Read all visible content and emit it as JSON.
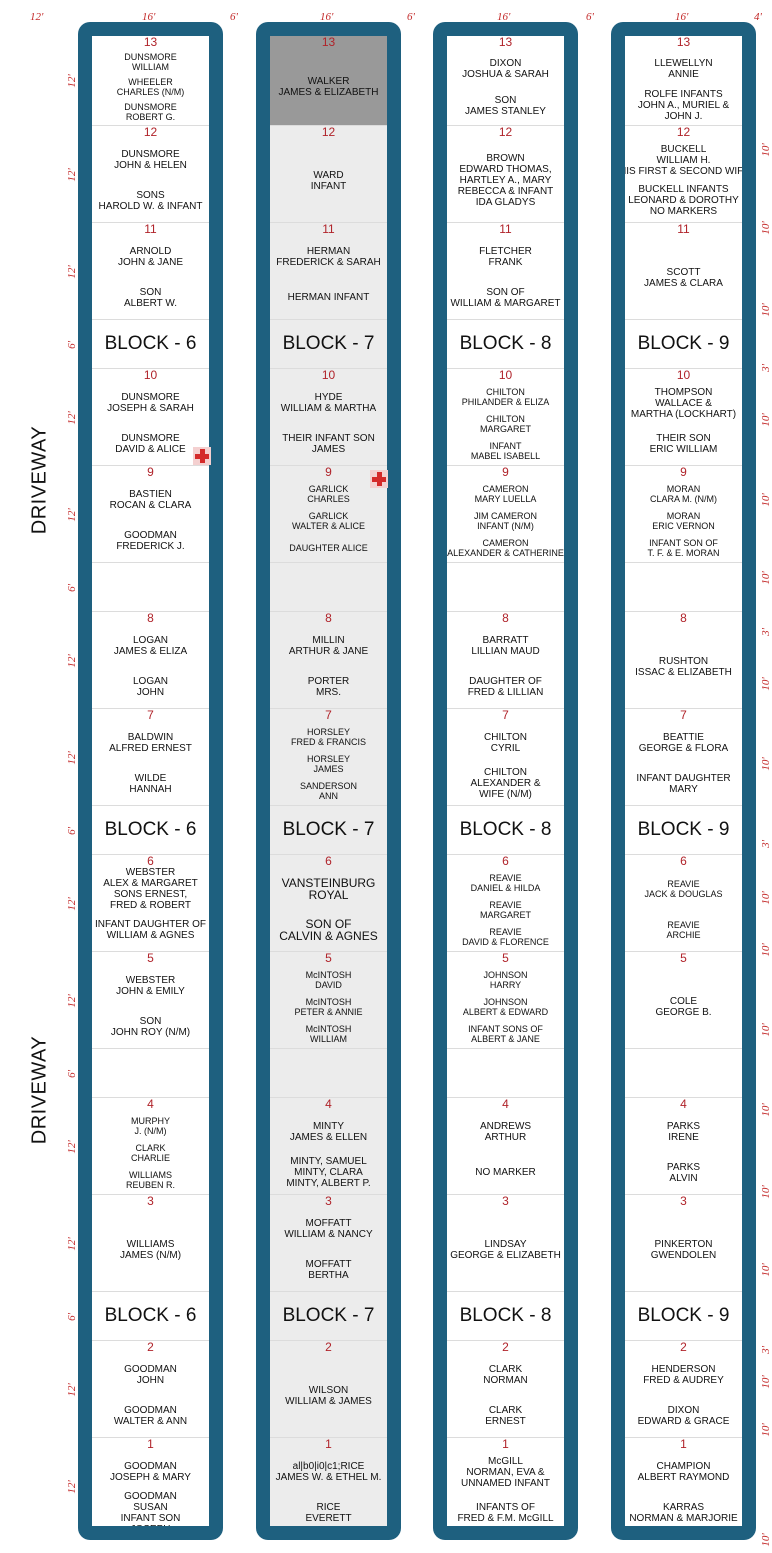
{
  "top_dims": [
    "12'",
    "16'",
    "6'",
    "16'",
    "6'",
    "16'",
    "6'",
    "16'",
    "4'"
  ],
  "driveway_label": "DRIVEWAY",
  "left_dims": [
    "12'",
    "12'",
    "12'",
    "6'",
    "12'",
    "12'",
    "6'",
    "12'",
    "12'",
    "6'",
    "12'",
    "12'",
    "6'",
    "12'",
    "12'",
    "6'",
    "12'",
    "12'"
  ],
  "right_dims": [
    "10'",
    "10'",
    "10'",
    "3'",
    "10'",
    "10'",
    "10'",
    "3'",
    "10'",
    "10'",
    "3'",
    "10'",
    "10'",
    "10'",
    "10'",
    "10'",
    "10'",
    "3'",
    "10'",
    "10'",
    "10'"
  ],
  "blocks": [
    {
      "name": "Block 6",
      "rows": [
        {
          "num": "13",
          "names": [
            "DUNSMORE\nWILLIAM",
            "WHEELER\nCHARLES (N/M)",
            "DUNSMORE\nROBERT G."
          ]
        },
        {
          "num": "12",
          "names": [
            "DUNSMORE\nJOHN & HELEN",
            "SONS\nHAROLD W. & INFANT"
          ]
        },
        {
          "num": "11",
          "names": [
            "ARNOLD\nJOHN & JANE",
            "SON\nALBERT W."
          ]
        },
        {
          "label": "BLOCK - 6"
        },
        {
          "num": "10",
          "names": [
            "DUNSMORE\nJOSEPH & SARAH",
            "DUNSMORE\nDAVID & ALICE"
          ]
        },
        {
          "num": "9",
          "names": [
            "BASTIEN\nROCAN & CLARA",
            "GOODMAN\nFREDERICK J."
          ]
        },
        {
          "empty": true
        },
        {
          "num": "8",
          "names": [
            "LOGAN\nJAMES & ELIZA",
            "LOGAN\nJOHN"
          ]
        },
        {
          "num": "7",
          "names": [
            "BALDWIN\nALFRED ERNEST",
            "WILDE\nHANNAH"
          ]
        },
        {
          "label": "BLOCK - 6"
        },
        {
          "num": "6",
          "names": [
            "WEBSTER\nALEX & MARGARET\nSONS ERNEST,\nFRED & ROBERT",
            "INFANT DAUGHTER OF\nWILLIAM & AGNES"
          ]
        },
        {
          "num": "5",
          "names": [
            "WEBSTER\nJOHN & EMILY",
            "SON\nJOHN ROY (N/M)"
          ]
        },
        {
          "empty": true
        },
        {
          "num": "4",
          "names": [
            "MURPHY\nJ. (N/M)",
            "CLARK\nCHARLIE",
            "WILLIAMS\nREUBEN R."
          ]
        },
        {
          "num": "3",
          "names": [
            "WILLIAMS\nJAMES (N/M)"
          ]
        },
        {
          "label": "BLOCK - 6"
        },
        {
          "num": "2",
          "names": [
            "GOODMAN\nJOHN",
            "GOODMAN\nWALTER & ANN"
          ]
        },
        {
          "num": "1",
          "names": [
            "GOODMAN\nJOSEPH & MARY",
            "GOODMAN\nSUSAN\nINFANT SON\nJOSEPH"
          ]
        }
      ]
    },
    {
      "name": "Block 7",
      "rows": [
        {
          "num": "13",
          "names": [
            "WALKER\nJAMES & ELIZABETH"
          ]
        },
        {
          "num": "12",
          "names": [
            "WARD\nINFANT"
          ]
        },
        {
          "num": "11",
          "names": [
            "HERMAN\nFREDERICK & SARAH",
            "HERMAN INFANT"
          ]
        },
        {
          "label": "BLOCK - 7"
        },
        {
          "num": "10",
          "names": [
            "HYDE\nWILLIAM & MARTHA",
            "THEIR INFANT SON\nJAMES"
          ]
        },
        {
          "num": "9",
          "names": [
            "GARLICK\nCHARLES",
            "GARLICK\nWALTER & ALICE",
            "DAUGHTER ALICE"
          ]
        },
        {
          "empty": true
        },
        {
          "num": "8",
          "names": [
            "MILLIN\nARTHUR & JANE",
            "PORTER\nMRS."
          ]
        },
        {
          "num": "7",
          "names": [
            "HORSLEY\nFRED & FRANCIS",
            "HORSLEY\nJAMES",
            "SANDERSON\nANN"
          ]
        },
        {
          "label": "BLOCK - 7"
        },
        {
          "num": "6",
          "names": [
            "VANSTEINBURG\nROYAL",
            "SON OF\nCALVIN & AGNES"
          ]
        },
        {
          "num": "5",
          "names": [
            "McINTOSH\nDAVID",
            "McINTOSH\nPETER & ANNIE",
            "McINTOSH\nWILLIAM"
          ]
        },
        {
          "empty": true
        },
        {
          "num": "4",
          "names": [
            "MINTY\nJAMES & ELLEN",
            "MINTY, SAMUEL\nMINTY, CLARA\nMINTY, ALBERT P."
          ]
        },
        {
          "num": "3",
          "names": [
            "MOFFATT\nWILLIAM & NANCY",
            "MOFFATT\nBERTHA"
          ]
        },
        {
          "label": "BLOCK - 7"
        },
        {
          "num": "2",
          "names": [
            "WILSON\nWILLIAM & JAMES"
          ]
        },
        {
          "num": "1",
          "names": [
            "al|b0|i0|c1;RICE\nJAMES W. & ETHEL M.",
            "RICE\nEVERETT"
          ]
        }
      ]
    },
    {
      "name": "Block 8",
      "rows": [
        {
          "num": "13",
          "names": [
            "DIXON\nJOSHUA & SARAH",
            "SON\nJAMES STANLEY"
          ]
        },
        {
          "num": "12",
          "names": [
            "BROWN\nEDWARD THOMAS,\nHARTLEY A., MARY\nREBECCA & INFANT\nIDA GLADYS"
          ]
        },
        {
          "num": "11",
          "names": [
            "FLETCHER\nFRANK",
            "SON OF\nWILLIAM & MARGARET"
          ]
        },
        {
          "label": "BLOCK - 8"
        },
        {
          "num": "10",
          "names": [
            "CHILTON\nPHILANDER & ELIZA",
            "CHILTON\nMARGARET",
            "INFANT\nMABEL ISABELL"
          ]
        },
        {
          "num": "9",
          "names": [
            "CAMERON\nMARY LUELLA",
            "JIM CAMERON\nINFANT (N/M)",
            "CAMERON\nALEXANDER & CATHERINE"
          ]
        },
        {
          "empty": true
        },
        {
          "num": "8",
          "names": [
            "BARRATT\nLILLIAN MAUD",
            "DAUGHTER OF\nFRED & LILLIAN"
          ]
        },
        {
          "num": "7",
          "names": [
            "CHILTON\nCYRIL",
            "CHILTON\nALEXANDER &\nWIFE (N/M)"
          ]
        },
        {
          "label": "BLOCK - 8"
        },
        {
          "num": "6",
          "names": [
            "REAVIE\nDANIEL & HILDA",
            "REAVIE\nMARGARET",
            "REAVIE\nDAVID & FLORENCE"
          ]
        },
        {
          "num": "5",
          "names": [
            "JOHNSON\nHARRY",
            "JOHNSON\nALBERT & EDWARD",
            "INFANT SONS OF\nALBERT & JANE"
          ]
        },
        {
          "empty": true
        },
        {
          "num": "4",
          "names": [
            "ANDREWS\nARTHUR",
            "NO MARKER"
          ]
        },
        {
          "num": "3",
          "names": [
            "LINDSAY\nGEORGE & ELIZABETH"
          ]
        },
        {
          "label": "BLOCK - 8"
        },
        {
          "num": "2",
          "names": [
            "CLARK\nNORMAN",
            "CLARK\nERNEST"
          ]
        },
        {
          "num": "1",
          "names": [
            "McGILL\nNORMAN, EVA &\nUNNAMED INFANT",
            "INFANTS OF\nFRED & F.M. McGILL"
          ]
        }
      ]
    },
    {
      "name": "Block 9",
      "rows": [
        {
          "num": "13",
          "names": [
            "LLEWELLYN\nANNIE",
            "ROLFE INFANTS\nJOHN A., MURIEL &\nJOHN J."
          ]
        },
        {
          "num": "12",
          "names": [
            "BUCKELL\nWILLIAM H.\nHIS FIRST & SECOND WIFE",
            "BUCKELL INFANTS\nLEONARD & DOROTHY\nNO MARKERS"
          ]
        },
        {
          "num": "11",
          "names": [
            "SCOTT\nJAMES & CLARA"
          ]
        },
        {
          "label": "BLOCK - 9"
        },
        {
          "num": "10",
          "names": [
            "THOMPSON\nWALLACE &\nMARTHA (LOCKHART)",
            "THEIR SON\nERIC WILLIAM"
          ]
        },
        {
          "num": "9",
          "names": [
            "MORAN\nCLARA M. (N/M)",
            "MORAN\nERIC VERNON",
            "INFANT SON OF\nT. F. & E. MORAN"
          ]
        },
        {
          "empty": true
        },
        {
          "num": "8",
          "names": [
            "RUSHTON\nISSAC & ELIZABETH"
          ]
        },
        {
          "num": "7",
          "names": [
            "BEATTIE\nGEORGE & FLORA",
            "INFANT DAUGHTER\nMARY"
          ]
        },
        {
          "label": "BLOCK - 9"
        },
        {
          "num": "6",
          "names": [
            "REAVIE\nJACK & DOUGLAS",
            "REAVIE\nARCHIE"
          ]
        },
        {
          "num": "5",
          "names": [
            "COLE\nGEORGE B."
          ]
        },
        {
          "empty": true
        },
        {
          "num": "4",
          "names": [
            "PARKS\nIRENE",
            "PARKS\nALVIN"
          ]
        },
        {
          "num": "3",
          "names": [
            "PINKERTON\nGWENDOLEN"
          ]
        },
        {
          "label": "BLOCK - 9"
        },
        {
          "num": "2",
          "names": [
            "HENDERSON\nFRED & AUDREY",
            "DIXON\nEDWARD & GRACE"
          ]
        },
        {
          "num": "1",
          "names": [
            "CHAMPION\nALBERT RAYMOND",
            "KARRAS\nNORMAN & MARJORIE"
          ]
        }
      ]
    }
  ],
  "colors": {
    "strip": "#1e607f",
    "highlight": "#999999",
    "shaded_column": "#ececec",
    "number": "#b0232a",
    "dimension": "#c32a2a",
    "marker": "#d42a2a"
  },
  "highlighted_plot": {
    "block": "Block 7",
    "num": "13"
  },
  "markers": [
    "cross-marker"
  ]
}
